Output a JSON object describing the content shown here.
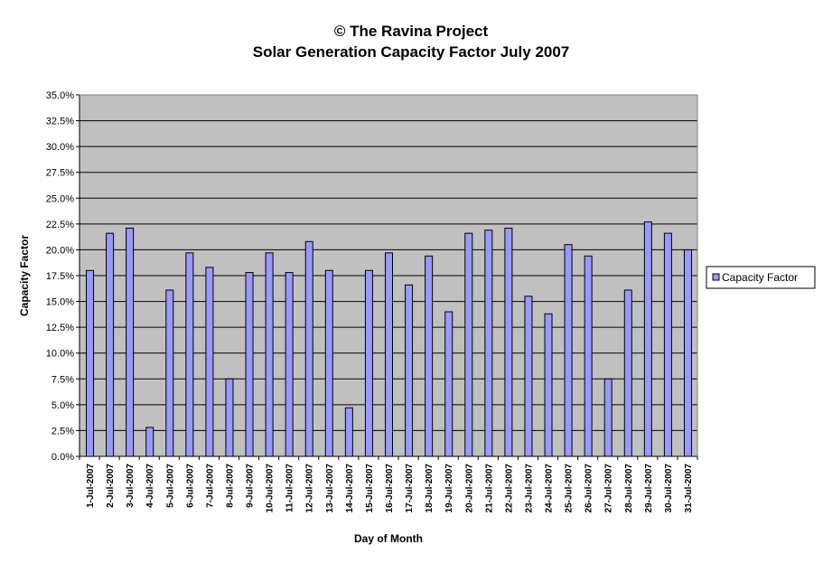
{
  "chart_data": {
    "type": "bar",
    "title_line1": "© The Ravina Project",
    "title_line2": "Solar Generation Capacity Factor July 2007",
    "xlabel": "Day of Month",
    "ylabel": "Capacity Factor",
    "ylim": [
      0,
      35
    ],
    "ytick_step": 2.5,
    "ytick_suffix": "%",
    "grid": true,
    "legend_position": "right",
    "plot_background": "#c0c0c0",
    "bar_color": "#9999ff",
    "bar_edge_color": "#000000",
    "categories": [
      "1-Jul-2007",
      "2-Jul-2007",
      "3-Jul-2007",
      "4-Jul-2007",
      "5-Jul-2007",
      "6-Jul-2007",
      "7-Jul-2007",
      "8-Jul-2007",
      "9-Jul-2007",
      "10-Jul-2007",
      "11-Jul-2007",
      "12-Jul-2007",
      "13-Jul-2007",
      "14-Jul-2007",
      "15-Jul-2007",
      "16-Jul-2007",
      "17-Jul-2007",
      "18-Jul-2007",
      "19-Jul-2007",
      "20-Jul-2007",
      "21-Jul-2007",
      "22-Jul-2007",
      "23-Jul-2007",
      "24-Jul-2007",
      "25-Jul-2007",
      "26-Jul-2007",
      "27-Jul-2007",
      "28-Jul-2007",
      "29-Jul-2007",
      "30-Jul-2007",
      "31-Jul-2007"
    ],
    "series": [
      {
        "name": "Capacity Factor",
        "values": [
          18.0,
          21.6,
          22.1,
          2.8,
          16.1,
          19.7,
          18.3,
          7.5,
          17.8,
          19.7,
          17.8,
          20.8,
          18.0,
          4.7,
          18.0,
          19.7,
          16.6,
          19.4,
          14.0,
          21.6,
          21.9,
          22.1,
          15.5,
          13.8,
          20.5,
          19.4,
          7.5,
          16.1,
          22.7,
          21.6,
          20.0
        ]
      }
    ]
  }
}
